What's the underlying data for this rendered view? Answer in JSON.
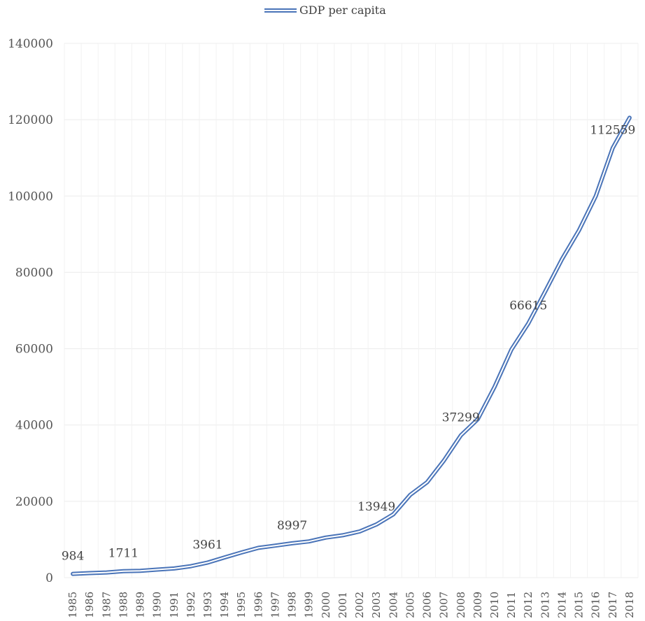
{
  "chart_data": {
    "type": "line",
    "title": "",
    "xlabel": "",
    "ylabel": "",
    "ylim": [
      0,
      140000
    ],
    "yticks": [
      0,
      20000,
      40000,
      60000,
      80000,
      100000,
      120000,
      140000
    ],
    "grid": true,
    "legend_position": "top",
    "line_color": "#4a74b8",
    "categories": [
      "1985",
      "1986",
      "1987",
      "1988",
      "1989",
      "1990",
      "1991",
      "1992",
      "1993",
      "1994",
      "1995",
      "1996",
      "1997",
      "1998",
      "1999",
      "2000",
      "2001",
      "2002",
      "2003",
      "2004",
      "2005",
      "2006",
      "2007",
      "2008",
      "2009",
      "2010",
      "2011",
      "2012",
      "2013",
      "2014",
      "2015",
      "2016",
      "2017",
      "2018"
    ],
    "series": [
      {
        "name": "GDP per capita",
        "values": [
          984,
          1200,
          1350,
          1711,
          1800,
          2100,
          2400,
          3000,
          3961,
          5300,
          6600,
          7800,
          8400,
          8997,
          9500,
          10500,
          11100,
          12100,
          13949,
          16600,
          21700,
          25000,
          30700,
          37299,
          41500,
          50000,
          59800,
          66615,
          75000,
          83500,
          91000,
          100000,
          112559,
          120500
        ]
      }
    ],
    "data_labels": [
      {
        "index": 0,
        "text": "984"
      },
      {
        "index": 3,
        "text": "1711"
      },
      {
        "index": 8,
        "text": "3961"
      },
      {
        "index": 13,
        "text": "8997"
      },
      {
        "index": 18,
        "text": "13949"
      },
      {
        "index": 23,
        "text": "37299"
      },
      {
        "index": 27,
        "text": "66615"
      },
      {
        "index": 32,
        "text": "112559"
      }
    ]
  }
}
